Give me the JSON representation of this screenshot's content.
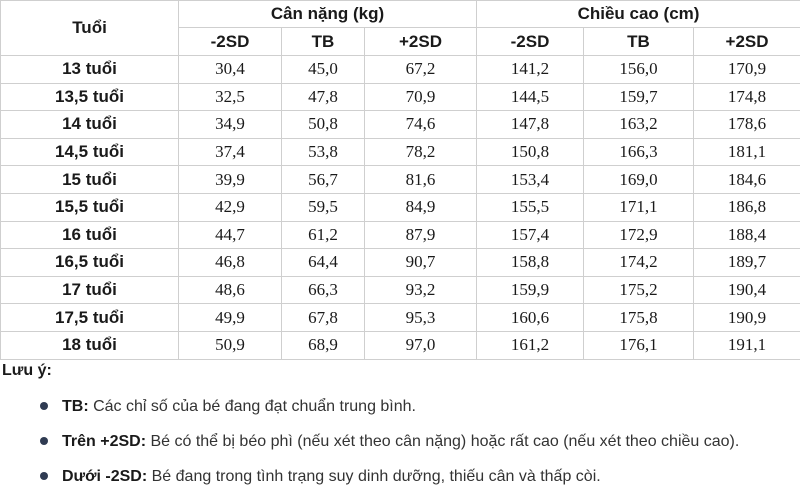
{
  "table": {
    "col_age": "Tuổi",
    "group_weight": "Cân nặng (kg)",
    "group_height": "Chiều cao (cm)",
    "sub_headers": [
      "-2SD",
      "TB",
      "+2SD",
      "-2SD",
      "TB",
      "+2SD"
    ],
    "rows": [
      {
        "age": "13 tuổi",
        "w_low": "30,4",
        "w_avg": "45,0",
        "w_high": "67,2",
        "h_low": "141,2",
        "h_avg": "156,0",
        "h_high": "170,9"
      },
      {
        "age": "13,5 tuổi",
        "w_low": "32,5",
        "w_avg": "47,8",
        "w_high": "70,9",
        "h_low": "144,5",
        "h_avg": "159,7",
        "h_high": "174,8"
      },
      {
        "age": "14 tuổi",
        "w_low": "34,9",
        "w_avg": "50,8",
        "w_high": "74,6",
        "h_low": "147,8",
        "h_avg": "163,2",
        "h_high": "178,6"
      },
      {
        "age": "14,5 tuổi",
        "w_low": "37,4",
        "w_avg": "53,8",
        "w_high": "78,2",
        "h_low": "150,8",
        "h_avg": "166,3",
        "h_high": "181,1"
      },
      {
        "age": "15 tuổi",
        "w_low": "39,9",
        "w_avg": "56,7",
        "w_high": "81,6",
        "h_low": "153,4",
        "h_avg": "169,0",
        "h_high": "184,6"
      },
      {
        "age": "15,5 tuổi",
        "w_low": "42,9",
        "w_avg": "59,5",
        "w_high": "84,9",
        "h_low": "155,5",
        "h_avg": "171,1",
        "h_high": "186,8"
      },
      {
        "age": "16 tuổi",
        "w_low": "44,7",
        "w_avg": "61,2",
        "w_high": "87,9",
        "h_low": "157,4",
        "h_avg": "172,9",
        "h_high": "188,4"
      },
      {
        "age": "16,5 tuổi",
        "w_low": "46,8",
        "w_avg": "64,4",
        "w_high": "90,7",
        "h_low": "158,8",
        "h_avg": "174,2",
        "h_high": "189,7"
      },
      {
        "age": "17 tuổi",
        "w_low": "48,6",
        "w_avg": "66,3",
        "w_high": "93,2",
        "h_low": "159,9",
        "h_avg": "175,2",
        "h_high": "190,4"
      },
      {
        "age": "17,5 tuổi",
        "w_low": "49,9",
        "w_avg": "67,8",
        "w_high": "95,3",
        "h_low": "160,6",
        "h_avg": "175,8",
        "h_high": "190,9"
      },
      {
        "age": "18 tuổi",
        "w_low": "50,9",
        "w_avg": "68,9",
        "w_high": "97,0",
        "h_low": "161,2",
        "h_avg": "176,1",
        "h_high": "191,1"
      }
    ]
  },
  "notes": {
    "title": "Lưu ý:",
    "items": [
      {
        "label": "TB:",
        "text": " Các chỉ số của bé đang đạt chuẩn trung bình."
      },
      {
        "label": "Trên +2SD:",
        "text": " Bé có thể bị béo phì (nếu xét theo cân nặng) hoặc rất cao (nếu xét theo chiều cao)."
      },
      {
        "label": "Dưới -2SD:",
        "text": " Bé đang trong tình trạng suy dinh dưỡng, thiếu cân và thấp còi."
      }
    ]
  },
  "colors": {
    "bullet": "#2f3b52",
    "border": "#cfcfcf",
    "text": "#1a1a1a"
  }
}
